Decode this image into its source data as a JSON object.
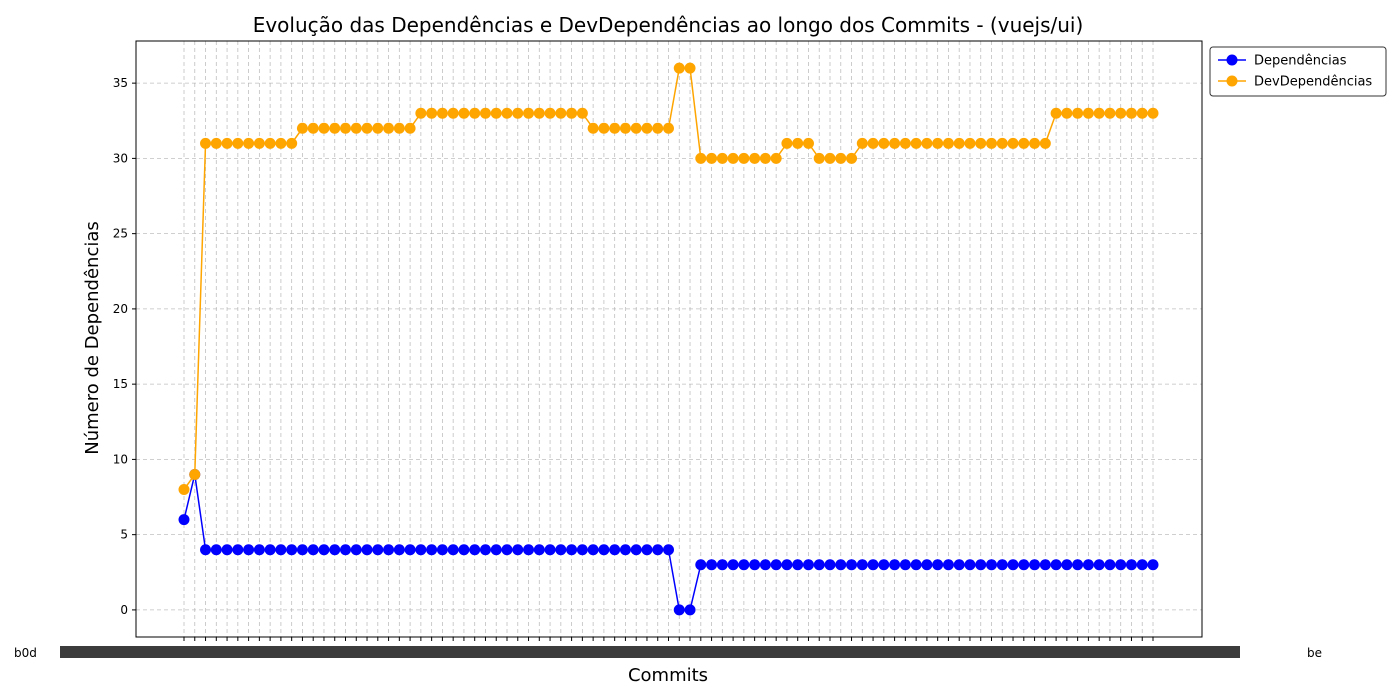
{
  "chart_data": {
    "type": "line",
    "title": "Evolução das Dependências e DevDependências ao longo dos Commits - (vuejs/ui)",
    "xlabel": "Commits",
    "ylabel": "Número de Dependências",
    "ylim": [
      -1.8,
      37.8
    ],
    "yticks": [
      0,
      5,
      10,
      15,
      20,
      25,
      30,
      35
    ],
    "grid": true,
    "legend_position": "top-right",
    "x_first_label": "b0d",
    "x_last_label": "be",
    "series": [
      {
        "name": "Dependências",
        "color": "#0000ff",
        "values": [
          6,
          9,
          4,
          4,
          4,
          4,
          4,
          4,
          4,
          4,
          4,
          4,
          4,
          4,
          4,
          4,
          4,
          4,
          4,
          4,
          4,
          4,
          4,
          4,
          4,
          4,
          4,
          4,
          4,
          4,
          4,
          4,
          4,
          4,
          4,
          4,
          4,
          4,
          4,
          4,
          4,
          4,
          4,
          4,
          4,
          4,
          0,
          0,
          3,
          3,
          3,
          3,
          3,
          3,
          3,
          3,
          3,
          3,
          3,
          3,
          3,
          3,
          3,
          3,
          3,
          3,
          3,
          3,
          3,
          3,
          3,
          3,
          3,
          3,
          3,
          3,
          3,
          3,
          3,
          3,
          3,
          3,
          3,
          3,
          3,
          3,
          3,
          3,
          3,
          3,
          3
        ]
      },
      {
        "name": "DevDependências",
        "color": "#ffa500",
        "values": [
          8,
          9,
          31,
          31,
          31,
          31,
          31,
          31,
          31,
          31,
          31,
          32,
          32,
          32,
          32,
          32,
          32,
          32,
          32,
          32,
          32,
          32,
          33,
          33,
          33,
          33,
          33,
          33,
          33,
          33,
          33,
          33,
          33,
          33,
          33,
          33,
          33,
          33,
          32,
          32,
          32,
          32,
          32,
          32,
          32,
          32,
          36,
          36,
          30,
          30,
          30,
          30,
          30,
          30,
          30,
          30,
          31,
          31,
          31,
          30,
          30,
          30,
          30,
          31,
          31,
          31,
          31,
          31,
          31,
          31,
          31,
          31,
          31,
          31,
          31,
          31,
          31,
          31,
          31,
          31,
          31,
          33,
          33,
          33,
          33,
          33,
          33,
          33,
          33,
          33,
          33
        ]
      }
    ]
  }
}
